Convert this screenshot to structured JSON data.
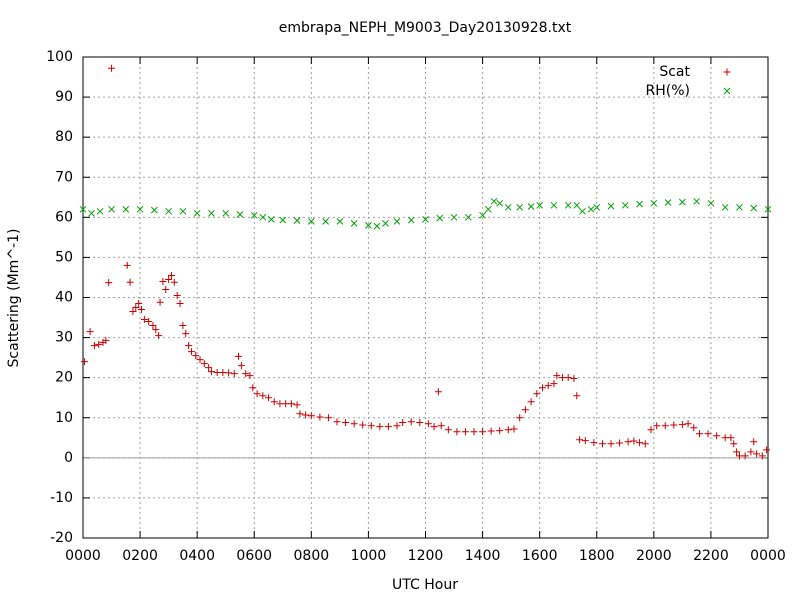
{
  "chart_data": {
    "type": "scatter",
    "title": "embrapa_NEPH_M9003_Day20130928.txt",
    "x_label": "UTC Hour",
    "y_label": "Scattering (Mm^-1)",
    "xlim": [
      0,
      24
    ],
    "xticks": [
      {
        "value": 0,
        "label": "0000"
      },
      {
        "value": 2,
        "label": "0200"
      },
      {
        "value": 4,
        "label": "0400"
      },
      {
        "value": 6,
        "label": "0600"
      },
      {
        "value": 8,
        "label": "0800"
      },
      {
        "value": 10,
        "label": "1000"
      },
      {
        "value": 12,
        "label": "1200"
      },
      {
        "value": 14,
        "label": "1400"
      },
      {
        "value": 16,
        "label": "1600"
      },
      {
        "value": 18,
        "label": "1800"
      },
      {
        "value": 20,
        "label": "2000"
      },
      {
        "value": 22,
        "label": "2200"
      },
      {
        "value": 24,
        "label": "0000"
      }
    ],
    "ylim": [
      -20,
      100
    ],
    "yticks": [
      -20,
      -10,
      0,
      10,
      20,
      30,
      40,
      50,
      60,
      70,
      80,
      90,
      100
    ],
    "grid": true,
    "zero_line": true,
    "legend": "top-right",
    "series": [
      {
        "name": "Scat",
        "color": "#cc0000",
        "marker": "plus",
        "x": [
          0.05,
          0.25,
          0.4,
          0.55,
          0.7,
          0.8,
          0.9,
          1.0,
          1.55,
          1.65,
          1.75,
          1.85,
          1.95,
          2.05,
          2.15,
          2.3,
          2.45,
          2.55,
          2.65,
          2.7,
          2.8,
          2.9,
          3.0,
          3.1,
          3.2,
          3.3,
          3.4,
          3.5,
          3.6,
          3.7,
          3.8,
          3.95,
          4.1,
          4.25,
          4.4,
          4.5,
          4.7,
          4.9,
          5.1,
          5.3,
          5.45,
          5.55,
          5.7,
          5.85,
          5.95,
          6.1,
          6.3,
          6.5,
          6.7,
          6.9,
          7.1,
          7.3,
          7.5,
          7.6,
          7.8,
          8.0,
          8.3,
          8.6,
          8.9,
          9.2,
          9.5,
          9.8,
          10.1,
          10.4,
          10.7,
          11.0,
          11.2,
          11.5,
          11.8,
          12.1,
          12.3,
          12.45,
          12.55,
          12.8,
          13.1,
          13.4,
          13.7,
          14.0,
          14.3,
          14.6,
          14.9,
          15.1,
          15.3,
          15.5,
          15.7,
          15.9,
          16.1,
          16.3,
          16.5,
          16.6,
          16.8,
          17.0,
          17.2,
          17.3,
          17.4,
          17.6,
          17.9,
          18.2,
          18.5,
          18.8,
          19.1,
          19.3,
          19.5,
          19.7,
          19.9,
          20.1,
          20.4,
          20.7,
          21.0,
          21.2,
          21.4,
          21.6,
          21.9,
          22.2,
          22.5,
          22.7,
          22.8,
          22.9,
          23.0,
          23.2,
          23.4,
          23.5,
          23.6,
          23.8,
          23.95
        ],
        "values": [
          24,
          31.5,
          28,
          28.3,
          28.8,
          29.3,
          43.7,
          97.2,
          48,
          43.8,
          36.5,
          37.5,
          38.5,
          37,
          34.5,
          34,
          33,
          32,
          30.5,
          38.8,
          44,
          42,
          44.5,
          45.5,
          43.8,
          40.5,
          38.5,
          33,
          31,
          28,
          26.5,
          25.5,
          24.5,
          23.5,
          22.5,
          21.5,
          21.3,
          21.3,
          21.2,
          21,
          25.3,
          23,
          21,
          20.5,
          17.5,
          16,
          15.5,
          15,
          14,
          13.5,
          13.5,
          13.5,
          13.2,
          11,
          10.7,
          10.5,
          10.2,
          10,
          9,
          8.8,
          8.5,
          8.2,
          8,
          7.8,
          7.8,
          8,
          8.8,
          9,
          8.8,
          8.5,
          7.8,
          16.5,
          8,
          7,
          6.5,
          6.5,
          6.5,
          6.5,
          6.7,
          6.8,
          7,
          7.2,
          10,
          12,
          14,
          16,
          17.5,
          18,
          18.5,
          20.5,
          20,
          20,
          19.8,
          15.5,
          4.5,
          4.3,
          3.8,
          3.5,
          3.5,
          3.7,
          4,
          4.2,
          3.8,
          3.5,
          7,
          8,
          8,
          8.2,
          8.3,
          8.5,
          7.5,
          6,
          6,
          5.5,
          5,
          5,
          3.5,
          1.5,
          0.5,
          0.5,
          1.5,
          4,
          1,
          0.5,
          2
        ]
      },
      {
        "name": "RH(%)",
        "color": "#00a000",
        "marker": "cross",
        "x": [
          0.0,
          0.3,
          0.6,
          1,
          1.5,
          2,
          2.5,
          3,
          3.5,
          4,
          4.5,
          5,
          5.5,
          6,
          6.3,
          6.6,
          7,
          7.5,
          8,
          8.5,
          9,
          9.5,
          10,
          10.3,
          10.6,
          11,
          11.5,
          12,
          12.5,
          13,
          13.5,
          14,
          14.2,
          14.4,
          14.6,
          14.9,
          15.3,
          15.7,
          16,
          16.5,
          17,
          17.3,
          17.5,
          17.8,
          18,
          18.5,
          19,
          19.5,
          20,
          20.5,
          21,
          21.5,
          22,
          22.5,
          23,
          23.5,
          24
        ],
        "values": [
          62,
          61,
          61.5,
          62,
          62,
          62,
          61.8,
          61.5,
          61.5,
          61,
          61,
          61,
          60.7,
          60.5,
          60,
          59.5,
          59.3,
          59.2,
          59,
          59,
          59,
          58.5,
          58,
          57.8,
          58.5,
          59,
          59.3,
          59.5,
          59.8,
          60,
          60,
          60.5,
          62,
          64,
          63.5,
          62.5,
          62.5,
          62.7,
          63,
          63,
          63,
          63,
          61.5,
          62,
          62.5,
          62.8,
          63,
          63.3,
          63.5,
          63.7,
          63.8,
          64,
          63.5,
          62.5,
          62.5,
          62.3,
          62
        ]
      }
    ]
  }
}
